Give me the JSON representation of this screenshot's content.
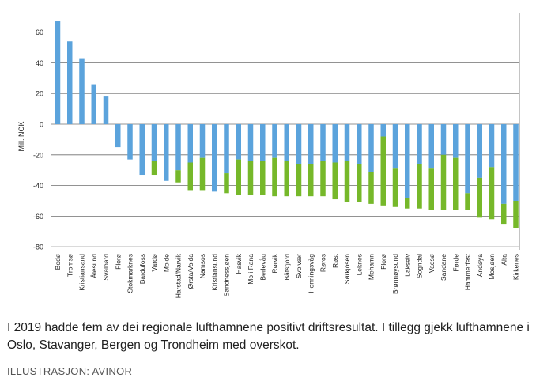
{
  "caption": "I 2019 hadde fem av dei regionale lufthamnene positivt driftsresultat. I tillegg gjekk lufthamnene i Oslo, Stavanger, Bergen og Trondheim med overskot.",
  "credit": "ILLUSTRASJON: AVINOR",
  "chart_data": {
    "type": "bar",
    "ylabel": "Mill. NOK",
    "ylim": [
      -80,
      70
    ],
    "yticks": [
      60,
      40,
      20,
      0,
      -20,
      -40,
      -60,
      -80
    ],
    "grid": true,
    "colors": {
      "blue": "#5ba3dc",
      "green": "#76b82a",
      "grid": "#6f6f6f"
    },
    "categories": [
      "Bodø",
      "Tromsø",
      "Kristiansand",
      "Ålesund",
      "Svalbard",
      "Florø",
      "Stokmarknes",
      "Bardufoss",
      "Vardø",
      "Molde",
      "Harstad/Narvik",
      "Ørsta/Volda",
      "Namsos",
      "Kristiansund",
      "Sandnessjøen",
      "Hasvik",
      "Mo i Rana",
      "Berlevåg",
      "Rørvik",
      "Båtsfjord",
      "Svolvær",
      "Honningsvåg",
      "Røros",
      "Røst",
      "Sørkjosen",
      "Leknes",
      "Mehamn",
      "Florø",
      "Brønnøysund",
      "Lakselv",
      "Sogndal",
      "Vadsø",
      "Sandane",
      "Førde",
      "Hammerfest",
      "Andøya",
      "Mosjøen",
      "Alta",
      "Kirkenes"
    ],
    "series": [
      {
        "values": [
          67,
          54,
          43,
          26,
          18,
          -15,
          -23,
          -33,
          -24,
          -37,
          -30,
          -25,
          -22,
          -44,
          -32,
          -23,
          -24,
          -24,
          -22,
          -24,
          -26,
          -26,
          -24,
          -25,
          -24,
          -26,
          -31,
          -8,
          -29,
          -48,
          -26,
          -29,
          -20,
          -22,
          -45,
          -35,
          -28,
          -52,
          -50
        ]
      },
      {
        "values": [
          0,
          0,
          0,
          0,
          0,
          0,
          0,
          0,
          -9,
          0,
          -8,
          -18,
          -21,
          0,
          -13,
          -23,
          -22,
          -22,
          -25,
          -23,
          -21,
          -21,
          -23,
          -24,
          -27,
          -25,
          -21,
          -45,
          -25,
          -7,
          -29,
          -27,
          -36,
          -34,
          -11,
          -26,
          -34,
          -13,
          -18
        ]
      }
    ]
  }
}
